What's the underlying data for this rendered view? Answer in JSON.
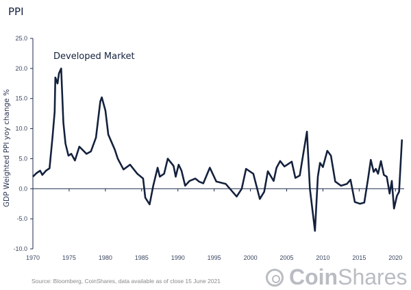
{
  "page_title": "PPI",
  "source_note": "Source: Bloomberg, CoinShares, data available as of close 15 June 2021",
  "logo_text": {
    "bold": "Coin",
    "regular": "Shares"
  },
  "chart_data": {
    "type": "line",
    "title": "PPI",
    "annotation": "Developed Market",
    "xlabel": "",
    "ylabel": "GDP Weighted PPI yoy change %",
    "xlim": [
      1970,
      2021.2
    ],
    "ylim": [
      -10,
      25
    ],
    "x_ticks": [
      1970,
      1975,
      1980,
      1985,
      1990,
      1995,
      2000,
      2005,
      2010,
      2015,
      2020
    ],
    "y_ticks": [
      "25.0",
      "20.0",
      "15.0",
      "10.0",
      "5.0",
      "0.0",
      "-5.0",
      "-10.0"
    ],
    "y_tick_values": [
      25,
      20,
      15,
      10,
      5,
      0,
      -5,
      -10
    ],
    "grid": false,
    "line_color": "#14213d",
    "series": [
      {
        "name": "Developed Market",
        "x": [
          1970.0,
          1970.5,
          1971.0,
          1971.3,
          1971.8,
          1972.3,
          1972.7,
          1973.0,
          1973.1,
          1973.4,
          1973.6,
          1973.9,
          1974.2,
          1974.5,
          1974.9,
          1975.3,
          1975.8,
          1976.4,
          1976.9,
          1977.4,
          1978.0,
          1978.7,
          1979.3,
          1979.5,
          1980.0,
          1980.4,
          1981.3,
          1981.7,
          1982.5,
          1983.4,
          1984.4,
          1985.2,
          1985.5,
          1986.1,
          1986.6,
          1987.2,
          1987.5,
          1988.1,
          1988.6,
          1989.4,
          1989.7,
          1990.1,
          1990.5,
          1991.0,
          1991.6,
          1992.4,
          1992.9,
          1993.5,
          1994.4,
          1995.3,
          1996.6,
          1998.1,
          1998.8,
          1999.4,
          2000.4,
          2001.3,
          2001.9,
          2002.4,
          2003.2,
          2003.6,
          2004.1,
          2004.7,
          2005.7,
          2006.2,
          2006.8,
          2007.3,
          2007.8,
          2008.2,
          2008.9,
          2009.3,
          2009.6,
          2010.0,
          2010.6,
          2011.1,
          2011.7,
          2012.5,
          2013.3,
          2013.8,
          2014.4,
          2015.1,
          2015.7,
          2016.2,
          2016.6,
          2017.0,
          2017.3,
          2017.6,
          2018.0,
          2018.4,
          2018.8,
          2019.2,
          2019.5,
          2019.8,
          2020.2,
          2020.5,
          2020.9
        ],
        "y": [
          2.0,
          2.6,
          3.0,
          2.3,
          3.0,
          3.4,
          8.5,
          12.8,
          18.5,
          17.5,
          19.2,
          20.0,
          11.0,
          7.5,
          5.5,
          5.8,
          4.7,
          7.0,
          6.4,
          5.8,
          6.2,
          8.5,
          14.5,
          15.2,
          13.0,
          9.0,
          6.5,
          5.0,
          3.2,
          4.0,
          2.5,
          1.7,
          -1.5,
          -2.6,
          0.5,
          3.5,
          2.0,
          2.5,
          5.0,
          3.8,
          2.0,
          4.0,
          3.0,
          0.5,
          1.3,
          1.7,
          1.2,
          0.9,
          3.5,
          1.2,
          0.8,
          -1.3,
          0.0,
          3.3,
          2.5,
          -1.7,
          -0.5,
          2.9,
          1.3,
          3.5,
          4.6,
          3.7,
          4.5,
          1.8,
          2.2,
          5.9,
          9.5,
          0.0,
          -7.0,
          2.0,
          4.3,
          3.6,
          6.3,
          5.5,
          1.2,
          0.5,
          0.8,
          1.5,
          -2.2,
          -2.5,
          -2.3,
          1.5,
          4.8,
          2.8,
          3.3,
          2.5,
          4.6,
          2.3,
          2.0,
          -0.8,
          1.3,
          -3.3,
          -1.2,
          -0.5,
          8.2
        ]
      }
    ]
  }
}
